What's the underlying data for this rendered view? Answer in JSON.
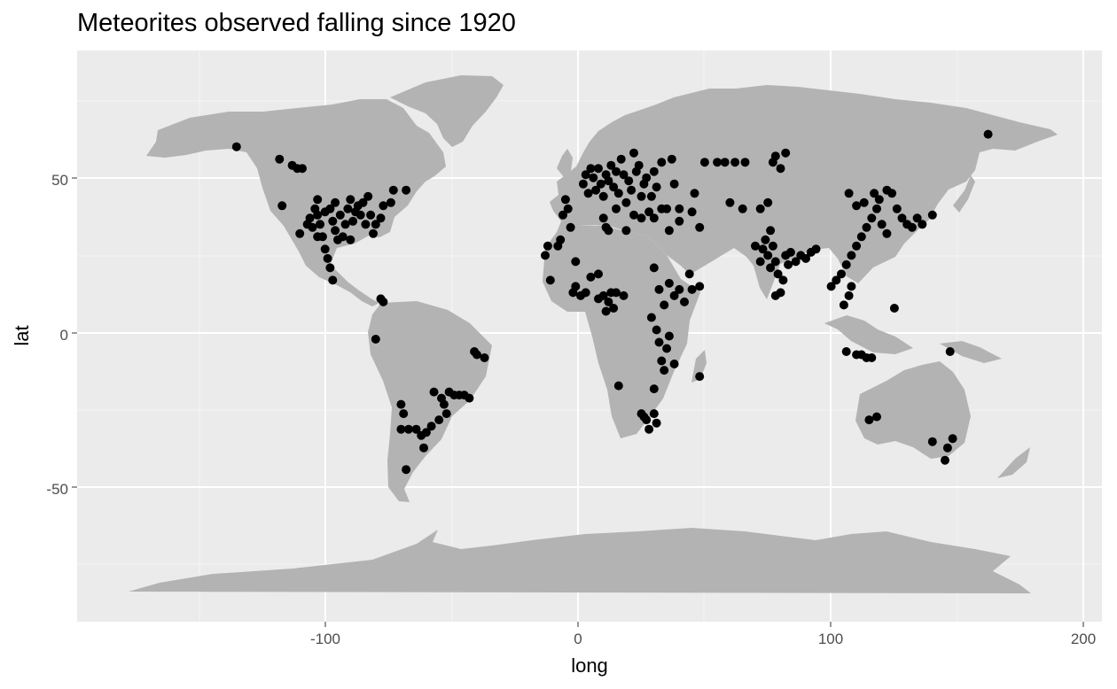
{
  "chart_data": {
    "type": "scatter",
    "title": "Meteorites observed falling since 1920",
    "subtitle": "",
    "xlabel": "long",
    "ylabel": "lat",
    "xlim": [
      -198,
      207
    ],
    "ylim": [
      -93,
      91
    ],
    "xticks": [
      -100,
      0,
      100,
      200
    ],
    "xtick_labels": [
      "-100",
      "0",
      "100",
      "200"
    ],
    "yticks": [
      -50,
      0,
      50
    ],
    "ytick_labels": [
      "-50",
      "0",
      "50"
    ],
    "grid": true,
    "legend": "none",
    "colors": {
      "panel": "#ebebeb",
      "grid": "#ffffff",
      "land": "#b3b3b3",
      "points": "#000000",
      "tick_text": "#4d4d4d"
    },
    "basemap": "world-land-polygons",
    "series": [
      {
        "points": [
          [
            -135,
            60
          ],
          [
            -118,
            56
          ],
          [
            -117,
            41
          ],
          [
            -113,
            54
          ],
          [
            -111,
            53
          ],
          [
            -109,
            53
          ],
          [
            -110,
            32
          ],
          [
            -106,
            37
          ],
          [
            -104,
            40
          ],
          [
            -103,
            43
          ],
          [
            -103,
            38
          ],
          [
            -102,
            35
          ],
          [
            -101,
            31
          ],
          [
            -100,
            27
          ],
          [
            -99,
            24
          ],
          [
            -98,
            21
          ],
          [
            -97,
            17
          ],
          [
            -98,
            40
          ],
          [
            -97,
            36
          ],
          [
            -96,
            33
          ],
          [
            -95,
            30
          ],
          [
            -94,
            38
          ],
          [
            -92,
            35
          ],
          [
            -91,
            40
          ],
          [
            -90,
            43
          ],
          [
            -89,
            36
          ],
          [
            -88,
            39
          ],
          [
            -87,
            41
          ],
          [
            -86,
            38
          ],
          [
            -85,
            42
          ],
          [
            -84,
            35
          ],
          [
            -83,
            44
          ],
          [
            -82,
            38
          ],
          [
            -81,
            32
          ],
          [
            -80,
            35
          ],
          [
            -78,
            37
          ],
          [
            -77,
            41
          ],
          [
            -74,
            42
          ],
          [
            -73,
            46
          ],
          [
            -68,
            46
          ],
          [
            -100,
            39
          ],
          [
            -96,
            42
          ],
          [
            -93,
            31
          ],
          [
            -90,
            30
          ],
          [
            -103,
            31
          ],
          [
            -105,
            34
          ],
          [
            -107,
            35
          ],
          [
            -78,
            11
          ],
          [
            -77,
            10
          ],
          [
            -80,
            -2
          ],
          [
            -70,
            -23
          ],
          [
            -69,
            -26
          ],
          [
            -70,
            -31
          ],
          [
            -68,
            -44
          ],
          [
            -67,
            -31
          ],
          [
            -64,
            -31
          ],
          [
            -62,
            -33
          ],
          [
            -61,
            -37
          ],
          [
            -60,
            -32
          ],
          [
            -58,
            -30
          ],
          [
            -55,
            -28
          ],
          [
            -53,
            -23
          ],
          [
            -52,
            -26
          ],
          [
            -51,
            -19
          ],
          [
            -49,
            -20
          ],
          [
            -47,
            -20
          ],
          [
            -45,
            -20
          ],
          [
            -43,
            -21
          ],
          [
            -41,
            -6
          ],
          [
            -40,
            -7
          ],
          [
            -37,
            -8
          ],
          [
            -57,
            -19
          ],
          [
            -54,
            -21
          ],
          [
            -12,
            28
          ],
          [
            -13,
            25
          ],
          [
            -11,
            17
          ],
          [
            -8,
            28
          ],
          [
            -7,
            30
          ],
          [
            -6,
            38
          ],
          [
            -5,
            43
          ],
          [
            -4,
            40
          ],
          [
            -3,
            34
          ],
          [
            -2,
            13
          ],
          [
            -1,
            15
          ],
          [
            1,
            12
          ],
          [
            2,
            48
          ],
          [
            3,
            51
          ],
          [
            4,
            45
          ],
          [
            5,
            53
          ],
          [
            6,
            50
          ],
          [
            7,
            46
          ],
          [
            8,
            53
          ],
          [
            9,
            48
          ],
          [
            10,
            44
          ],
          [
            11,
            51
          ],
          [
            12,
            49
          ],
          [
            13,
            54
          ],
          [
            14,
            47
          ],
          [
            15,
            52
          ],
          [
            16,
            45
          ],
          [
            17,
            56
          ],
          [
            18,
            51
          ],
          [
            19,
            42
          ],
          [
            20,
            49
          ],
          [
            21,
            46
          ],
          [
            22,
            58
          ],
          [
            23,
            52
          ],
          [
            24,
            54
          ],
          [
            25,
            44
          ],
          [
            26,
            48
          ],
          [
            27,
            50
          ],
          [
            28,
            39
          ],
          [
            29,
            44
          ],
          [
            30,
            52
          ],
          [
            31,
            47
          ],
          [
            33,
            55
          ],
          [
            35,
            40
          ],
          [
            37,
            56
          ],
          [
            38,
            48
          ],
          [
            40,
            40
          ],
          [
            10,
            37
          ],
          [
            11,
            34
          ],
          [
            12,
            33
          ],
          [
            15,
            40
          ],
          [
            19,
            33
          ],
          [
            22,
            38
          ],
          [
            25,
            37
          ],
          [
            30,
            37
          ],
          [
            33,
            40
          ],
          [
            36,
            33
          ],
          [
            40,
            36
          ],
          [
            45,
            39
          ],
          [
            46,
            45
          ],
          [
            48,
            34
          ],
          [
            55,
            55
          ],
          [
            58,
            55
          ],
          [
            62,
            55
          ],
          [
            66,
            55
          ],
          [
            50,
            55
          ],
          [
            60,
            42
          ],
          [
            65,
            40
          ],
          [
            5,
            18
          ],
          [
            8,
            19
          ],
          [
            10,
            12
          ],
          [
            12,
            10
          ],
          [
            14,
            8
          ],
          [
            15,
            13
          ],
          [
            18,
            12
          ],
          [
            8,
            11
          ],
          [
            11,
            7
          ],
          [
            13,
            13
          ],
          [
            3,
            13
          ],
          [
            -1,
            23
          ],
          [
            30,
            21
          ],
          [
            32,
            14
          ],
          [
            34,
            9
          ],
          [
            36,
            16
          ],
          [
            38,
            12
          ],
          [
            40,
            14
          ],
          [
            42,
            10
          ],
          [
            45,
            14
          ],
          [
            48,
            15
          ],
          [
            44,
            19
          ],
          [
            29,
            5
          ],
          [
            31,
            1
          ],
          [
            32,
            -3
          ],
          [
            33,
            -9
          ],
          [
            34,
            -12
          ],
          [
            35,
            -5
          ],
          [
            36,
            -1
          ],
          [
            38,
            -10
          ],
          [
            30,
            -18
          ],
          [
            25,
            -26
          ],
          [
            27,
            -28
          ],
          [
            28,
            -31
          ],
          [
            30,
            -26
          ],
          [
            31,
            -29
          ],
          [
            26,
            -27
          ],
          [
            16,
            -17
          ],
          [
            48,
            -14
          ],
          [
            70,
            28
          ],
          [
            72,
            23
          ],
          [
            73,
            27
          ],
          [
            74,
            30
          ],
          [
            75,
            25
          ],
          [
            76,
            21
          ],
          [
            77,
            28
          ],
          [
            78,
            23
          ],
          [
            79,
            19
          ],
          [
            80,
            13
          ],
          [
            81,
            17
          ],
          [
            82,
            25
          ],
          [
            83,
            22
          ],
          [
            84,
            26
          ],
          [
            86,
            23
          ],
          [
            88,
            25
          ],
          [
            90,
            24
          ],
          [
            92,
            26
          ],
          [
            94,
            27
          ],
          [
            76,
            33
          ],
          [
            78,
            57
          ],
          [
            77,
            55
          ],
          [
            80,
            53
          ],
          [
            82,
            58
          ],
          [
            72,
            40
          ],
          [
            75,
            42
          ],
          [
            78,
            12
          ],
          [
            100,
            15
          ],
          [
            102,
            17
          ],
          [
            104,
            19
          ],
          [
            106,
            22
          ],
          [
            108,
            25
          ],
          [
            110,
            28
          ],
          [
            112,
            31
          ],
          [
            114,
            34
          ],
          [
            116,
            37
          ],
          [
            118,
            40
          ],
          [
            120,
            35
          ],
          [
            122,
            32
          ],
          [
            124,
            45
          ],
          [
            126,
            40
          ],
          [
            107,
            45
          ],
          [
            110,
            41
          ],
          [
            113,
            42
          ],
          [
            117,
            45
          ],
          [
            119,
            43
          ],
          [
            122,
            46
          ],
          [
            128,
            37
          ],
          [
            130,
            35
          ],
          [
            132,
            34
          ],
          [
            134,
            37
          ],
          [
            136,
            35
          ],
          [
            140,
            38
          ],
          [
            105,
            9
          ],
          [
            107,
            12
          ],
          [
            108,
            15
          ],
          [
            125,
            8
          ],
          [
            110,
            -7
          ],
          [
            112,
            -7
          ],
          [
            114,
            -8
          ],
          [
            116,
            -8
          ],
          [
            106,
            -6
          ],
          [
            115,
            -28
          ],
          [
            118,
            -27
          ],
          [
            140,
            -35
          ],
          [
            146,
            -37
          ],
          [
            148,
            -34
          ],
          [
            145,
            -41
          ],
          [
            147,
            -6
          ],
          [
            162,
            64
          ]
        ]
      }
    ]
  }
}
